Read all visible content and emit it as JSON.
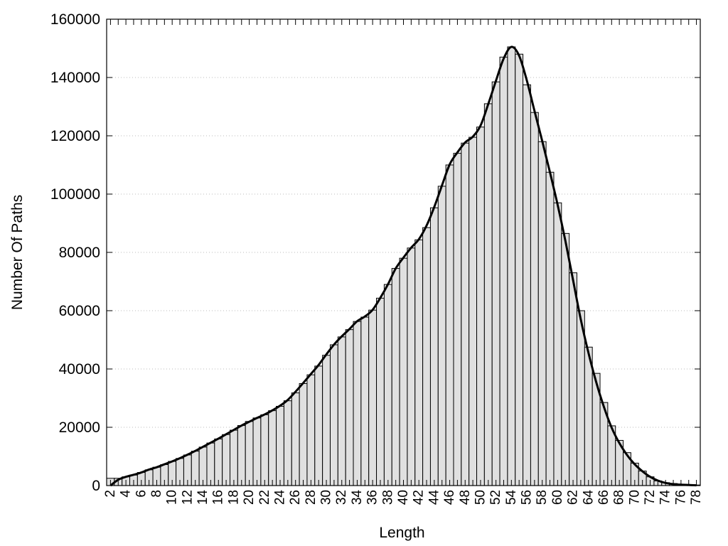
{
  "chart_data": {
    "type": "bar",
    "xlabel": "Length",
    "ylabel": "Number Of Paths",
    "xlim": [
      1.5,
      78.5
    ],
    "ylim": [
      0,
      160000
    ],
    "yticks": [
      0,
      20000,
      40000,
      60000,
      80000,
      100000,
      120000,
      140000,
      160000
    ],
    "xticks": [
      2,
      4,
      6,
      8,
      10,
      12,
      14,
      16,
      18,
      20,
      22,
      24,
      26,
      28,
      30,
      32,
      34,
      36,
      38,
      40,
      42,
      44,
      46,
      48,
      50,
      52,
      54,
      56,
      58,
      60,
      62,
      64,
      66,
      68,
      70,
      72,
      74,
      76,
      78
    ],
    "grid": "horizontal dotted",
    "bar_color": "#e0e0e0",
    "edge_color": "#000000",
    "categories": [
      2,
      3,
      4,
      5,
      6,
      7,
      8,
      9,
      10,
      11,
      12,
      13,
      14,
      15,
      16,
      17,
      18,
      19,
      20,
      21,
      22,
      23,
      24,
      25,
      26,
      27,
      28,
      29,
      30,
      31,
      32,
      33,
      34,
      35,
      36,
      37,
      38,
      39,
      40,
      41,
      42,
      43,
      44,
      45,
      46,
      47,
      48,
      49,
      50,
      51,
      52,
      53,
      54,
      55,
      56,
      57,
      58,
      59,
      60,
      61,
      62,
      63,
      64,
      65,
      66,
      67,
      68,
      69,
      70,
      71,
      72,
      73,
      74,
      75,
      76,
      77,
      78
    ],
    "values": [
      2500,
      2500,
      3000,
      3600,
      4500,
      5400,
      6300,
      7200,
      8300,
      9300,
      10500,
      11800,
      13200,
      14600,
      16000,
      17500,
      19000,
      20600,
      22000,
      23200,
      24300,
      25700,
      27200,
      29100,
      31800,
      35000,
      38000,
      41000,
      44700,
      48300,
      51000,
      53500,
      56300,
      57800,
      60200,
      64300,
      69000,
      74500,
      78000,
      81500,
      84300,
      88500,
      95300,
      102700,
      110000,
      114000,
      117500,
      119500,
      123000,
      131000,
      138500,
      147000,
      150500,
      148000,
      137500,
      128000,
      118000,
      107500,
      97000,
      86500,
      73000,
      60000,
      47500,
      38500,
      28500,
      20500,
      15500,
      11300,
      7700,
      5000,
      3000,
      1600,
      1000,
      700,
      500,
      300,
      200
    ],
    "curve": [
      0,
      2000,
      3000,
      3700,
      4500,
      5500,
      6300,
      7300,
      8300,
      9400,
      10600,
      11900,
      13300,
      14700,
      16100,
      17600,
      19100,
      20600,
      21900,
      23200,
      24400,
      25800,
      27400,
      29400,
      32200,
      35200,
      38300,
      41400,
      45000,
      48400,
      51200,
      53700,
      56400,
      58000,
      60300,
      64400,
      69100,
      74500,
      78200,
      81600,
      84500,
      89200,
      95600,
      103000,
      110200,
      114300,
      117700,
      119700,
      123500,
      130900,
      138900,
      146500,
      150500,
      147500,
      139000,
      128500,
      118200,
      107500,
      96300,
      84000,
      70500,
      57000,
      45500,
      35500,
      27000,
      19900,
      14600,
      10500,
      7300,
      4900,
      3000,
      1700,
      900,
      500,
      300,
      200,
      100
    ]
  }
}
